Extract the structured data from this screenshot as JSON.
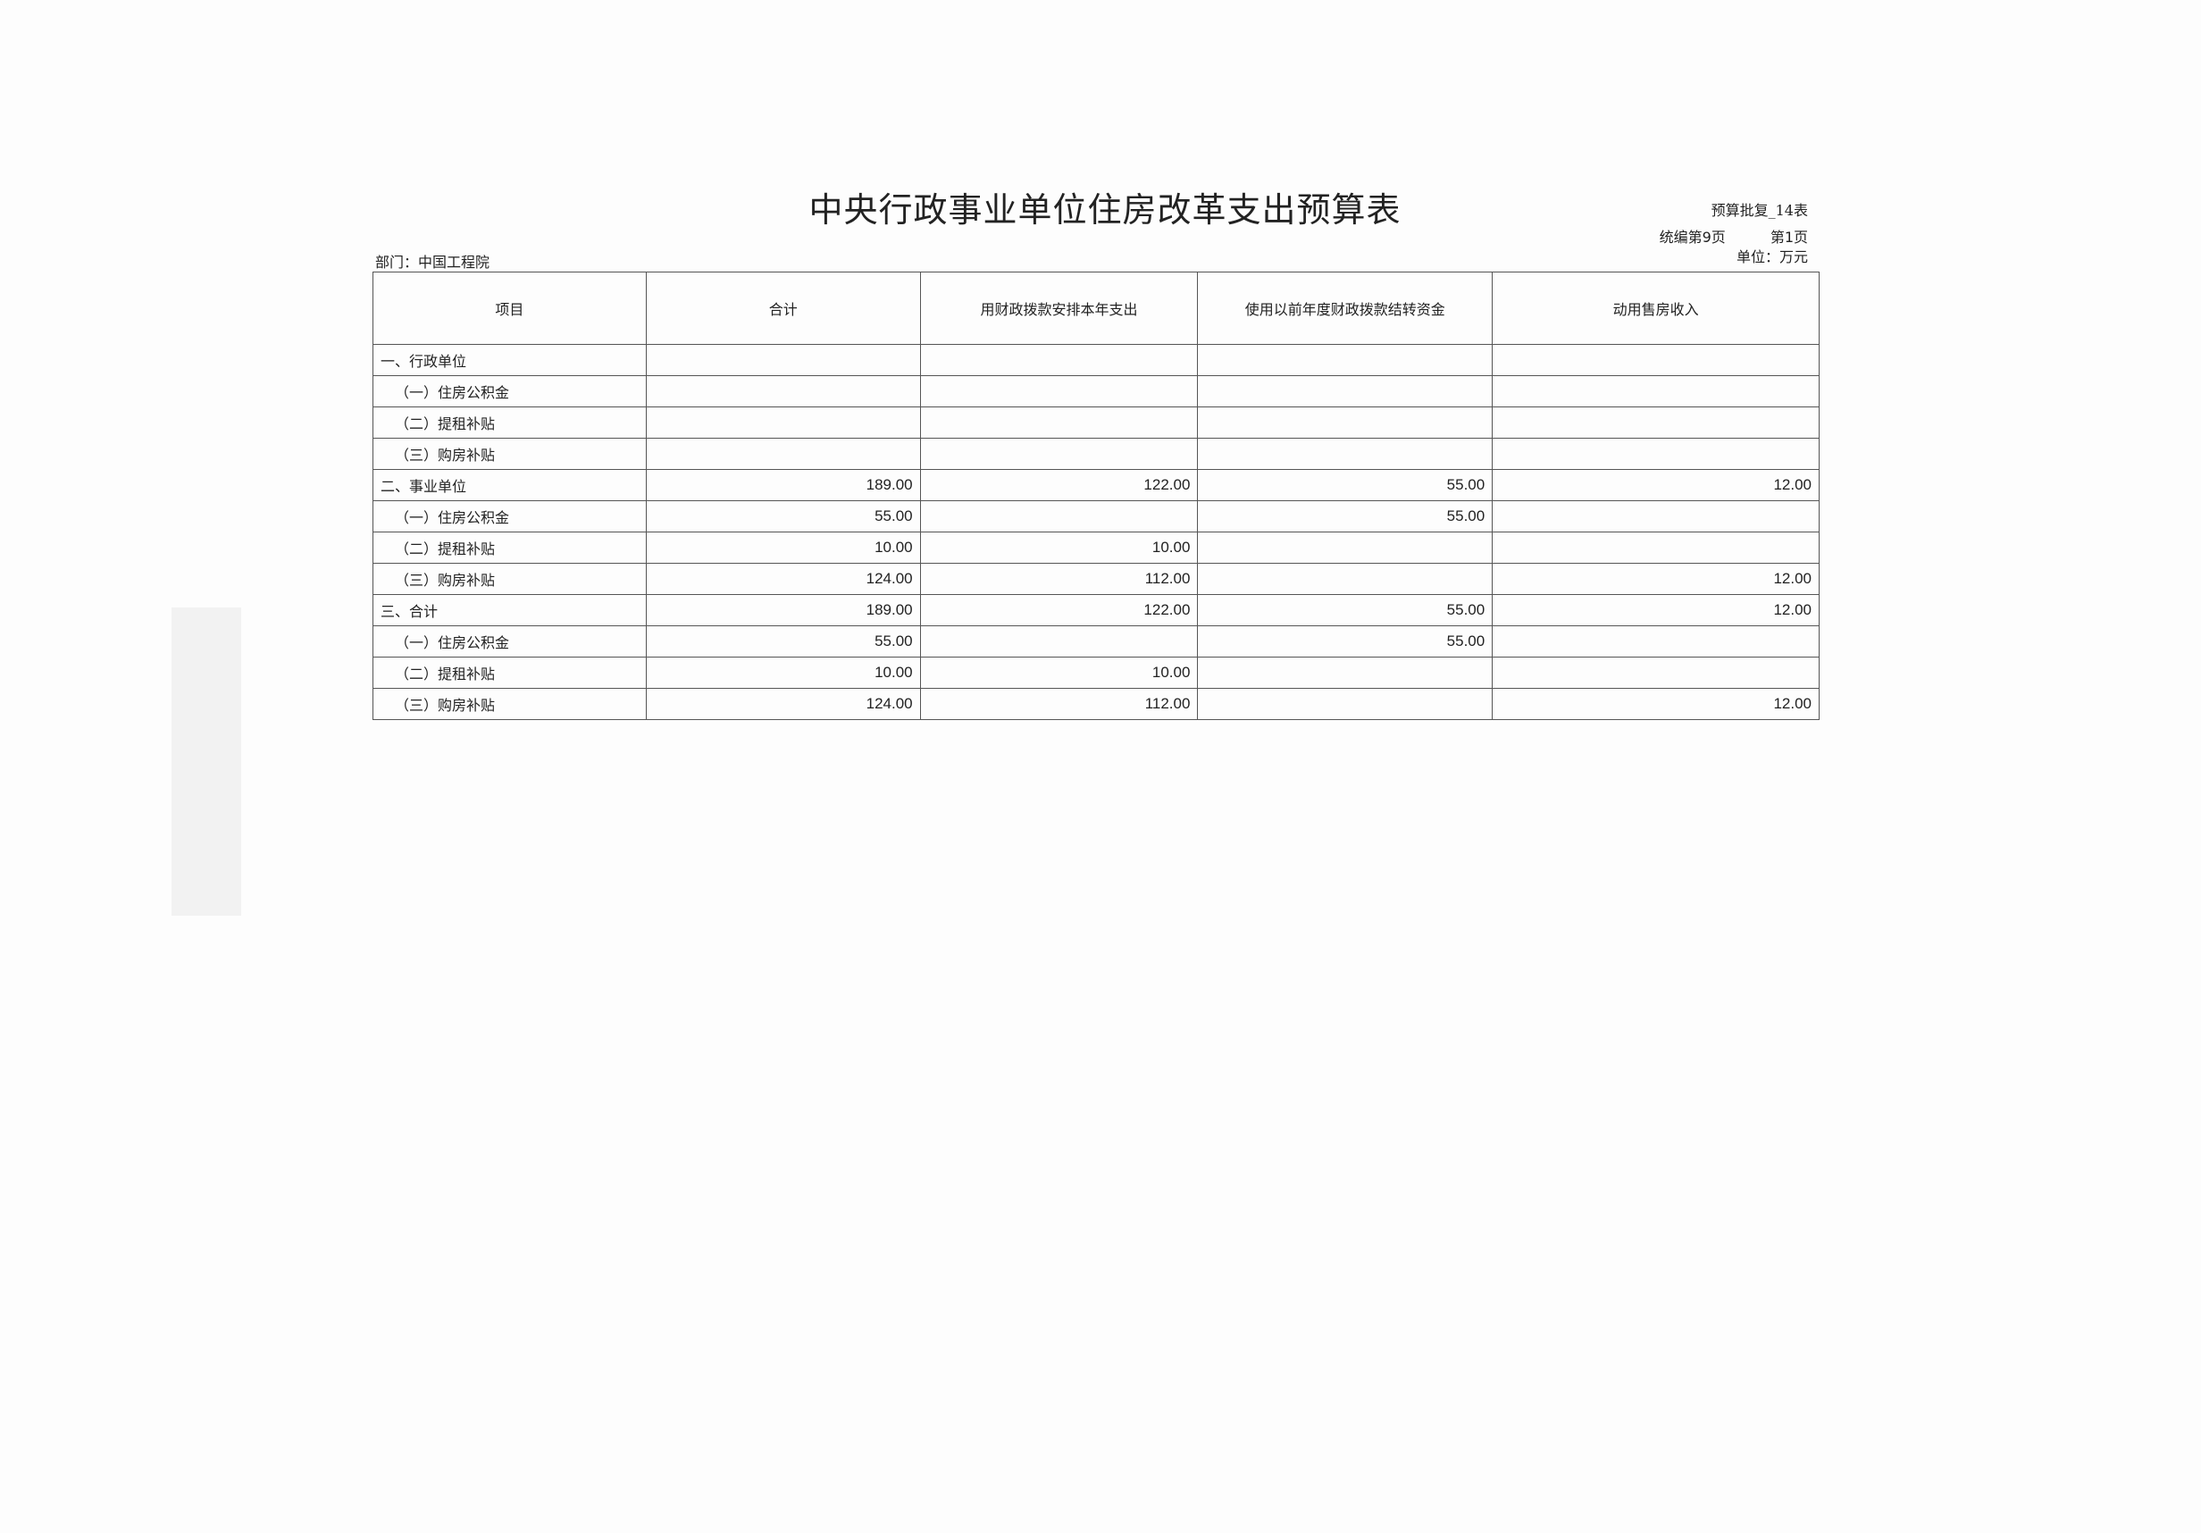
{
  "title": "中央行政事业单位住房改革支出预算表",
  "form_no": "预算批复_14表",
  "compilation_page": "统编第9页",
  "page": "第1页",
  "unit": "单位：万元",
  "department": "部门：中国工程院",
  "table": {
    "headers": [
      "项目",
      "合计",
      "用财政拨款安排本年支出",
      "使用以前年度财政拨款结转资金",
      "动用售房收入"
    ],
    "rows": [
      {
        "item": "一、行政单位",
        "level": 1,
        "cells": [
          "",
          "",
          "",
          ""
        ]
      },
      {
        "item": "（一）住房公积金",
        "level": 2,
        "cells": [
          "",
          "",
          "",
          ""
        ]
      },
      {
        "item": "（二）提租补贴",
        "level": 2,
        "cells": [
          "",
          "",
          "",
          ""
        ]
      },
      {
        "item": "（三）购房补贴",
        "level": 2,
        "cells": [
          "",
          "",
          "",
          ""
        ]
      },
      {
        "item": "二、事业单位",
        "level": 1,
        "cells": [
          "189.00",
          "122.00",
          "55.00",
          "12.00"
        ]
      },
      {
        "item": "（一）住房公积金",
        "level": 2,
        "cells": [
          "55.00",
          "",
          "55.00",
          ""
        ]
      },
      {
        "item": "（二）提租补贴",
        "level": 2,
        "cells": [
          "10.00",
          "10.00",
          "",
          ""
        ]
      },
      {
        "item": "（三）购房补贴",
        "level": 2,
        "cells": [
          "124.00",
          "112.00",
          "",
          "12.00"
        ]
      },
      {
        "item": "三、合计",
        "level": 1,
        "cells": [
          "189.00",
          "122.00",
          "55.00",
          "12.00"
        ]
      },
      {
        "item": "（一）住房公积金",
        "level": 2,
        "cells": [
          "55.00",
          "",
          "55.00",
          ""
        ]
      },
      {
        "item": "（二）提租补贴",
        "level": 2,
        "cells": [
          "10.00",
          "10.00",
          "",
          ""
        ]
      },
      {
        "item": "（三）购房补贴",
        "level": 2,
        "cells": [
          "124.00",
          "112.00",
          "",
          "12.00"
        ]
      }
    ]
  }
}
